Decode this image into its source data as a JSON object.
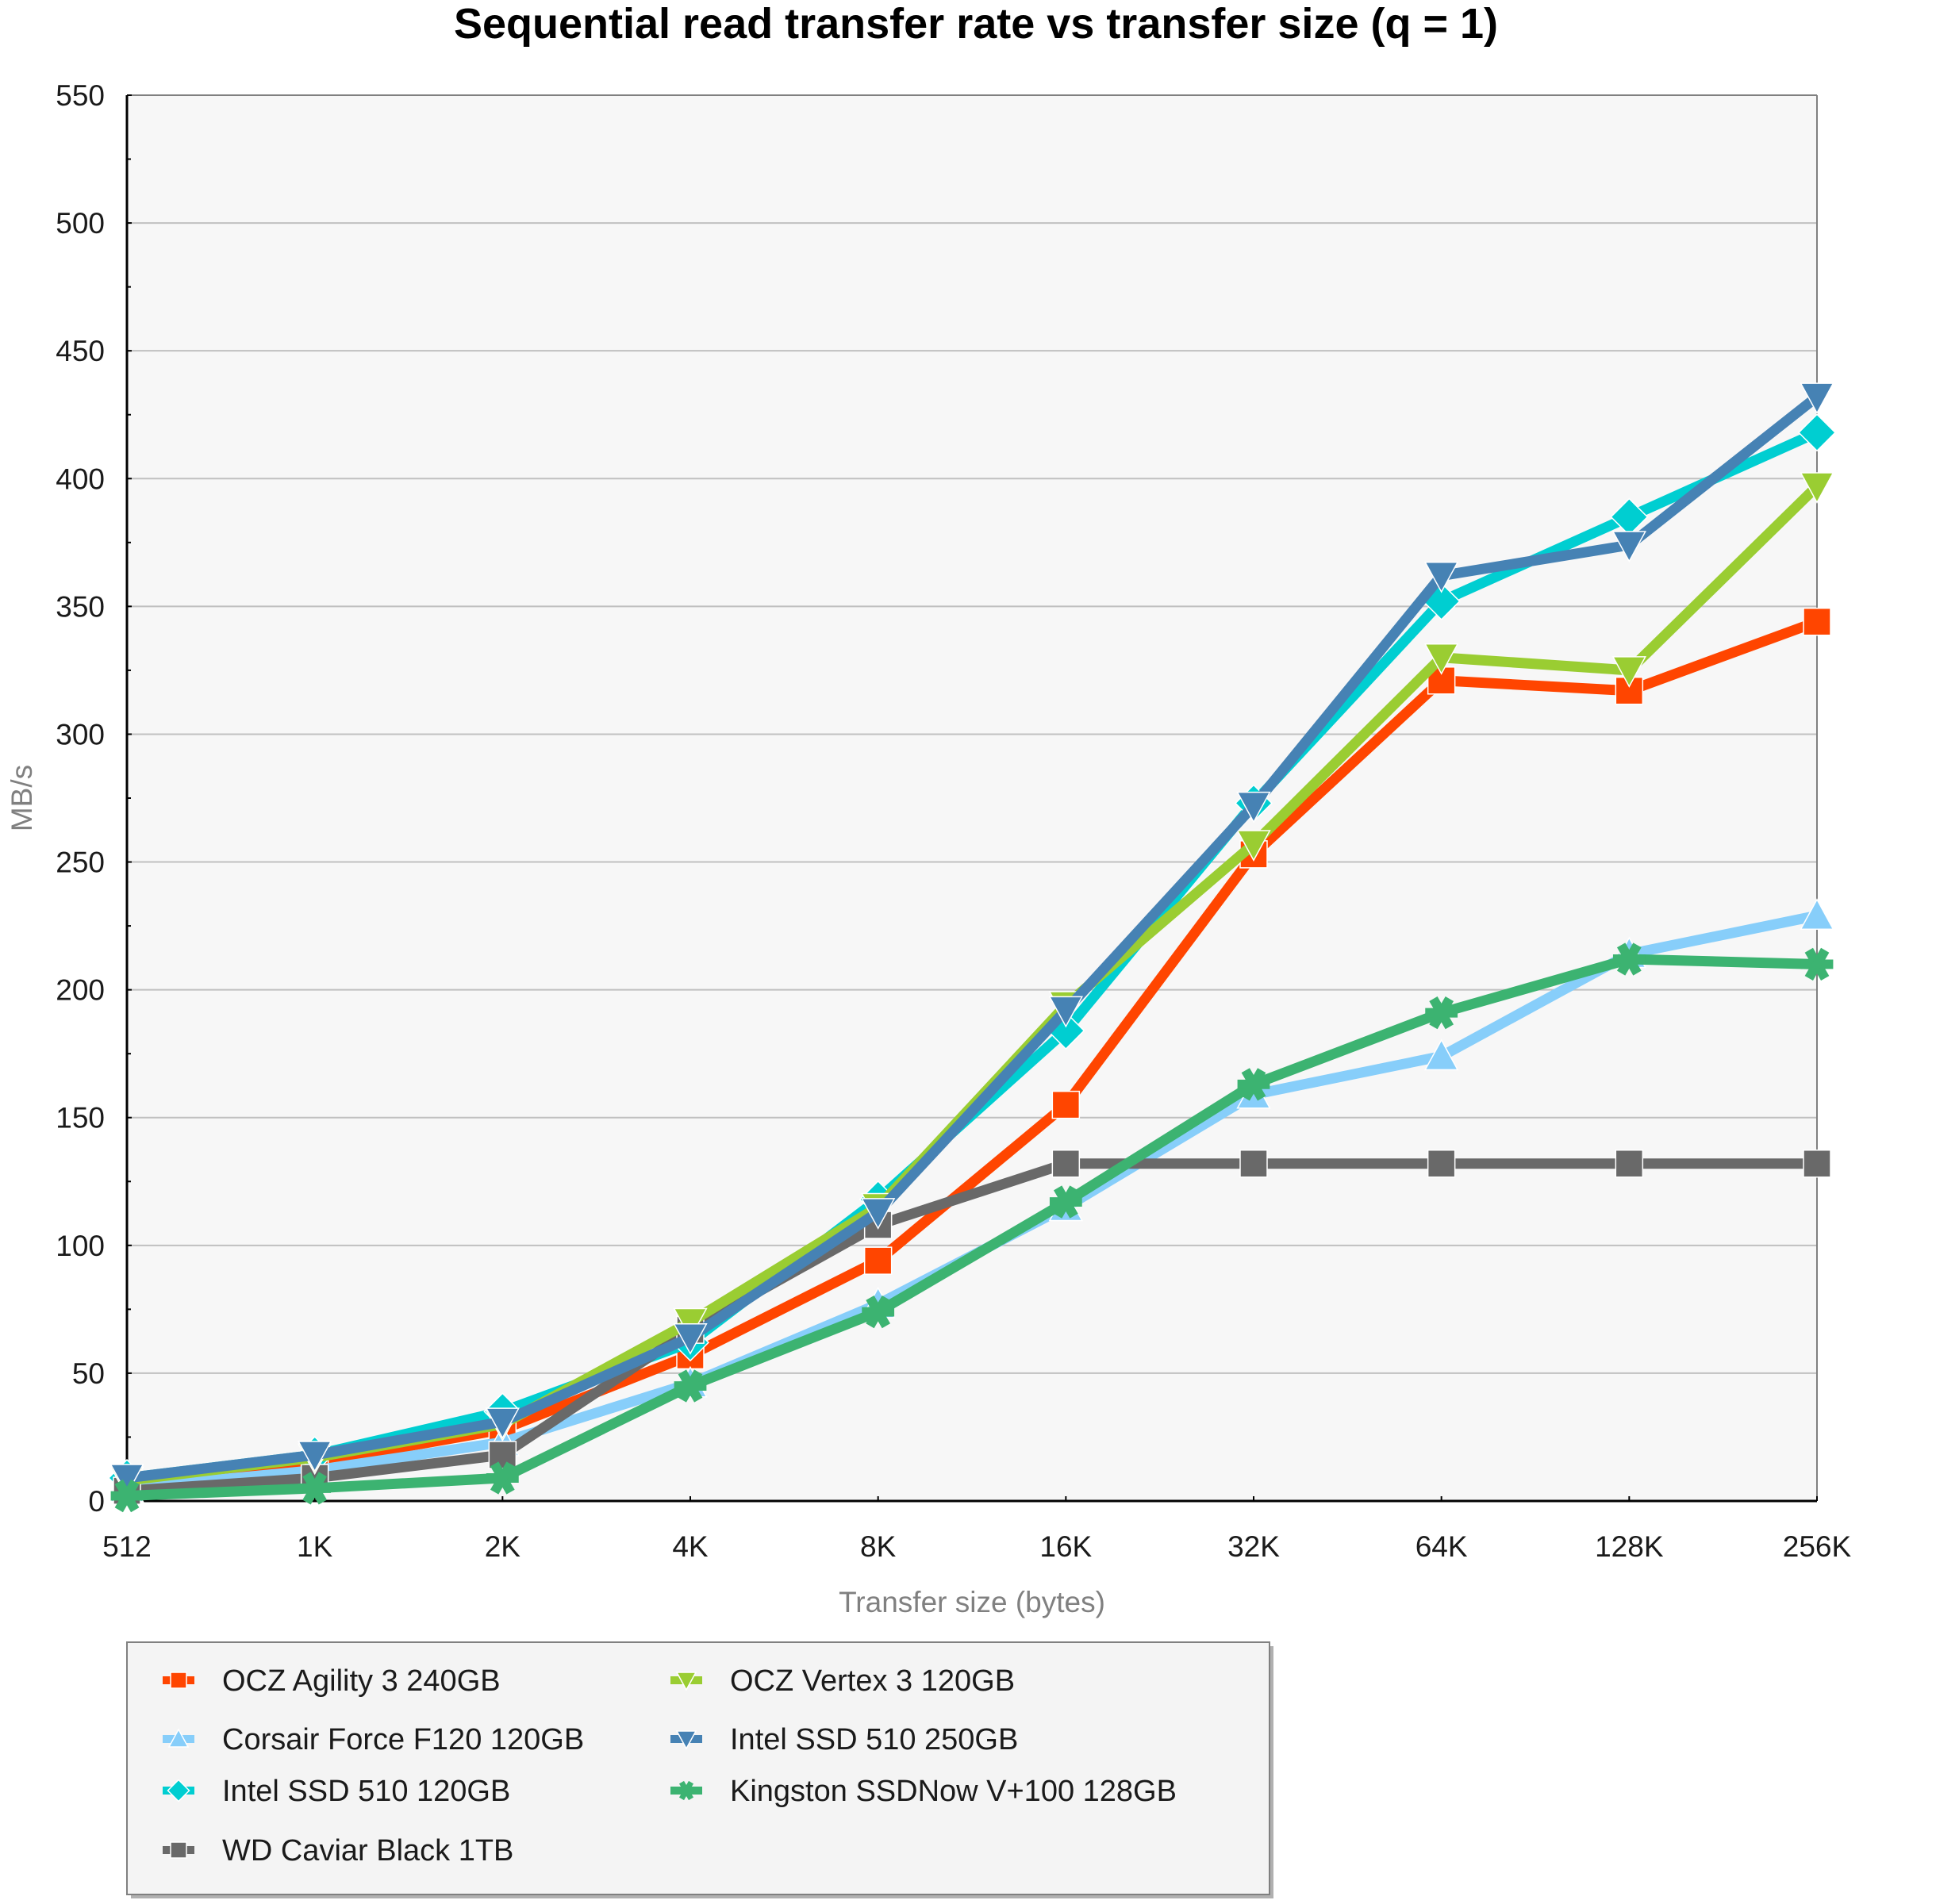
{
  "chart_data": {
    "type": "line",
    "title": "Sequential read transfer rate vs transfer size (q = 1)",
    "xlabel": "Transfer size (bytes)",
    "ylabel": "MB/s",
    "categories": [
      "512",
      "1K",
      "2K",
      "4K",
      "8K",
      "16K",
      "32K",
      "64K",
      "128K",
      "256K"
    ],
    "ylim": [
      0,
      550
    ],
    "yticks": [
      0,
      50,
      100,
      150,
      200,
      250,
      300,
      350,
      400,
      450,
      500,
      550
    ],
    "grid": true,
    "legend_position": "bottom-left",
    "series": [
      {
        "name": "OCZ Agility 3 240GB",
        "color": "#ff4500",
        "marker": "square",
        "values": [
          5,
          15,
          28,
          57,
          94,
          155,
          253,
          321,
          317,
          344
        ]
      },
      {
        "name": "Corsair Force F120 120GB",
        "color": "#87cefa",
        "marker": "triangle-up",
        "values": [
          5,
          12,
          23,
          46,
          77,
          115,
          159,
          174,
          214,
          229
        ]
      },
      {
        "name": "Intel SSD 510 120GB",
        "color": "#00ced1",
        "marker": "diamond",
        "values": [
          9,
          18,
          35,
          62,
          118,
          184,
          273,
          352,
          385,
          418
        ]
      },
      {
        "name": "WD Caviar Black 1TB",
        "color": "#696969",
        "marker": "square",
        "values": [
          4,
          9,
          18,
          67,
          108,
          132,
          132,
          132,
          132,
          132
        ]
      },
      {
        "name": "OCZ Vertex 3 120GB",
        "color": "#9acd32",
        "marker": "triangle-down",
        "values": [
          8,
          17,
          30,
          70,
          115,
          194,
          257,
          330,
          325,
          397
        ]
      },
      {
        "name": "Intel SSD 510 250GB",
        "color": "#4682b4",
        "marker": "triangle-down",
        "values": [
          9,
          18,
          31,
          64,
          113,
          192,
          272,
          362,
          374,
          432
        ]
      },
      {
        "name": "Kingston SSDNow V+100 128GB",
        "color": "#3cb371",
        "marker": "asterisk",
        "values": [
          2,
          5,
          9,
          45,
          74,
          117,
          163,
          191,
          212,
          210
        ]
      }
    ],
    "legend_order": [
      0,
      4,
      1,
      5,
      2,
      6,
      3
    ]
  }
}
